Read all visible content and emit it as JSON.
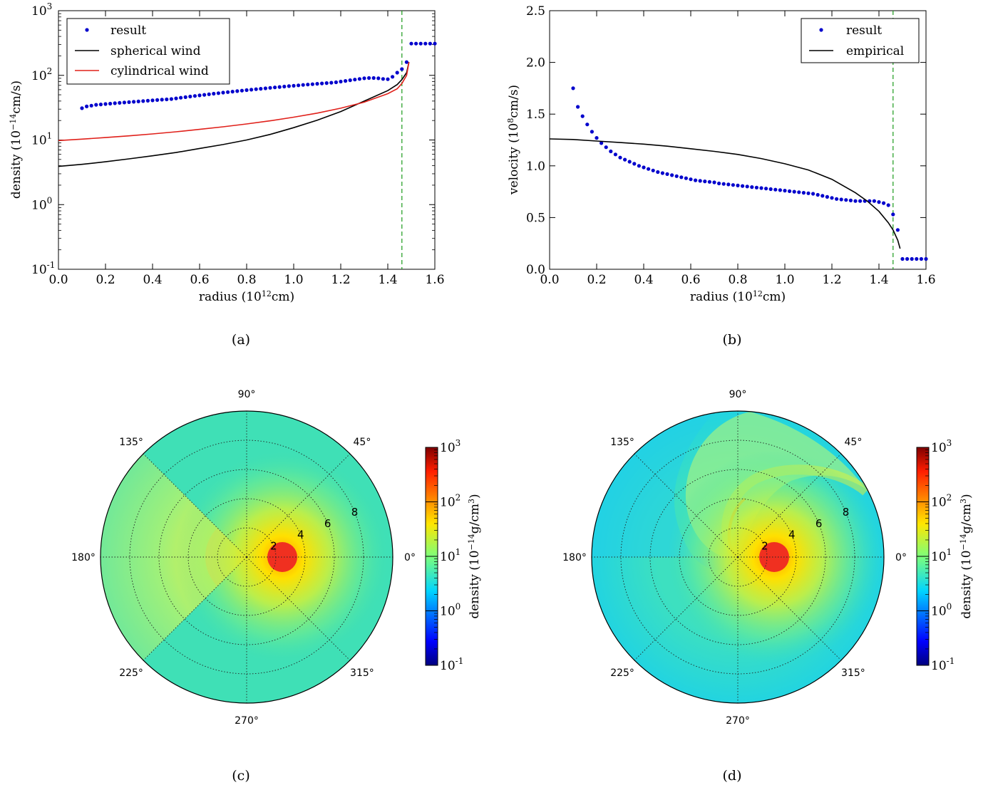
{
  "chart_data": [
    {
      "type": "scatter",
      "panel_label": "(a)",
      "xlabel_main": "radius",
      "xlabel_unit_pre": "(10",
      "xlabel_unit_exp": "12",
      "xlabel_unit_post": "cm)",
      "ylabel_main": "density",
      "ylabel_unit_pre": "(10",
      "ylabel_unit_exp": "−14",
      "ylabel_unit_post": "cm/s)",
      "xlim": [
        0,
        1.6
      ],
      "ylim": [
        0.1,
        1000
      ],
      "yscale": "log",
      "x_ticks": [
        "0.0",
        "0.2",
        "0.4",
        "0.6",
        "0.8",
        "1.0",
        "1.2",
        "1.4",
        "1.6"
      ],
      "y_ticks": [
        {
          "base": "10",
          "exp": "-1",
          "value": 0.1
        },
        {
          "base": "10",
          "exp": "0",
          "value": 1
        },
        {
          "base": "10",
          "exp": "1",
          "value": 10
        },
        {
          "base": "10",
          "exp": "2",
          "value": 100
        },
        {
          "base": "10",
          "exp": "3",
          "value": 1000
        }
      ],
      "vline": 1.46,
      "legend": {
        "position": "top-left",
        "entries": [
          {
            "label": "result",
            "style": "dots",
            "color": "#0000cc"
          },
          {
            "label": "spherical wind",
            "style": "line",
            "color": "#000000"
          },
          {
            "label": "cylindrical wind",
            "style": "line",
            "color": "#e0201a"
          }
        ]
      },
      "series": [
        {
          "name": "result",
          "kind": "dots",
          "color": "#0000cc",
          "x": [
            0.1,
            0.12,
            0.14,
            0.16,
            0.18,
            0.2,
            0.22,
            0.24,
            0.26,
            0.28,
            0.3,
            0.32,
            0.34,
            0.36,
            0.38,
            0.4,
            0.42,
            0.44,
            0.46,
            0.48,
            0.5,
            0.52,
            0.54,
            0.56,
            0.58,
            0.6,
            0.62,
            0.64,
            0.66,
            0.68,
            0.7,
            0.72,
            0.74,
            0.76,
            0.78,
            0.8,
            0.82,
            0.84,
            0.86,
            0.88,
            0.9,
            0.92,
            0.94,
            0.96,
            0.98,
            1.0,
            1.02,
            1.04,
            1.06,
            1.08,
            1.1,
            1.12,
            1.14,
            1.16,
            1.18,
            1.2,
            1.22,
            1.24,
            1.26,
            1.28,
            1.3,
            1.32,
            1.34,
            1.36,
            1.38,
            1.4,
            1.42,
            1.44,
            1.46,
            1.48,
            1.5,
            1.52,
            1.54,
            1.56,
            1.58,
            1.6
          ],
          "y": [
            31,
            33,
            34,
            35,
            35.5,
            36,
            36.5,
            37,
            37.5,
            38,
            38.5,
            39,
            39.5,
            40,
            40.5,
            41,
            41.5,
            42,
            42.5,
            43,
            44,
            45,
            46,
            47,
            48,
            49,
            50,
            51,
            52,
            53,
            54,
            55,
            56,
            57,
            58,
            59,
            60,
            61,
            62,
            63,
            64,
            65,
            66,
            67,
            68,
            69,
            70,
            71,
            72,
            73,
            74,
            75,
            76,
            77,
            78,
            80,
            82,
            84,
            86,
            88,
            90,
            91,
            91,
            90,
            88,
            87,
            95,
            110,
            125,
            160,
            310,
            310,
            310,
            310,
            310,
            310
          ]
        },
        {
          "name": "spherical wind",
          "kind": "line",
          "color": "#000000",
          "x": [
            0.0,
            0.1,
            0.2,
            0.3,
            0.4,
            0.5,
            0.6,
            0.7,
            0.8,
            0.9,
            1.0,
            1.1,
            1.2,
            1.3,
            1.4,
            1.44,
            1.46,
            1.48,
            1.49
          ],
          "y": [
            3.9,
            4.2,
            4.6,
            5.1,
            5.7,
            6.4,
            7.4,
            8.5,
            10.0,
            12.2,
            15.5,
            20.2,
            27.5,
            40,
            58,
            72,
            86,
            110,
            160
          ]
        },
        {
          "name": "cylindrical wind",
          "kind": "line",
          "color": "#e0201a",
          "x": [
            0.0,
            0.1,
            0.2,
            0.3,
            0.4,
            0.5,
            0.6,
            0.7,
            0.8,
            0.9,
            1.0,
            1.1,
            1.2,
            1.3,
            1.4,
            1.44,
            1.46,
            1.48,
            1.49
          ],
          "y": [
            9.8,
            10.3,
            10.9,
            11.6,
            12.4,
            13.4,
            14.6,
            16.0,
            17.7,
            19.8,
            22.5,
            26.0,
            31,
            38.5,
            52,
            62,
            75,
            100,
            160
          ]
        }
      ]
    },
    {
      "type": "scatter",
      "panel_label": "(b)",
      "xlabel_main": "radius",
      "xlabel_unit_pre": "(10",
      "xlabel_unit_exp": "12",
      "xlabel_unit_post": "cm)",
      "ylabel_main": "velocity",
      "ylabel_unit_pre": "(10",
      "ylabel_unit_exp": "8",
      "ylabel_unit_post": "cm/s)",
      "xlim": [
        0,
        1.6
      ],
      "ylim": [
        0,
        2.5
      ],
      "yscale": "linear",
      "x_ticks": [
        "0.0",
        "0.2",
        "0.4",
        "0.6",
        "0.8",
        "1.0",
        "1.2",
        "1.4",
        "1.6"
      ],
      "y_ticks": [
        "0.0",
        "0.5",
        "1.0",
        "1.5",
        "2.0",
        "2.5"
      ],
      "vline": 1.46,
      "legend": {
        "position": "top-right",
        "entries": [
          {
            "label": "result",
            "style": "dots",
            "color": "#0000cc"
          },
          {
            "label": "empirical",
            "style": "line",
            "color": "#000000"
          }
        ]
      },
      "series": [
        {
          "name": "result",
          "kind": "dots",
          "color": "#0000cc",
          "x": [
            0.1,
            0.12,
            0.14,
            0.16,
            0.18,
            0.2,
            0.22,
            0.24,
            0.26,
            0.28,
            0.3,
            0.32,
            0.34,
            0.36,
            0.38,
            0.4,
            0.42,
            0.44,
            0.46,
            0.48,
            0.5,
            0.52,
            0.54,
            0.56,
            0.58,
            0.6,
            0.62,
            0.64,
            0.66,
            0.68,
            0.7,
            0.72,
            0.74,
            0.76,
            0.78,
            0.8,
            0.82,
            0.84,
            0.86,
            0.88,
            0.9,
            0.92,
            0.94,
            0.96,
            0.98,
            1.0,
            1.02,
            1.04,
            1.06,
            1.08,
            1.1,
            1.12,
            1.14,
            1.16,
            1.18,
            1.2,
            1.22,
            1.24,
            1.26,
            1.28,
            1.3,
            1.32,
            1.34,
            1.36,
            1.38,
            1.4,
            1.42,
            1.44,
            1.46,
            1.48,
            1.5,
            1.52,
            1.54,
            1.56,
            1.58,
            1.6
          ],
          "y": [
            1.75,
            1.57,
            1.48,
            1.4,
            1.33,
            1.27,
            1.22,
            1.18,
            1.14,
            1.11,
            1.08,
            1.06,
            1.04,
            1.02,
            1.0,
            0.985,
            0.97,
            0.955,
            0.94,
            0.93,
            0.92,
            0.91,
            0.9,
            0.89,
            0.88,
            0.87,
            0.86,
            0.855,
            0.85,
            0.845,
            0.84,
            0.83,
            0.825,
            0.82,
            0.815,
            0.81,
            0.805,
            0.8,
            0.795,
            0.79,
            0.785,
            0.78,
            0.775,
            0.77,
            0.765,
            0.76,
            0.755,
            0.75,
            0.745,
            0.74,
            0.735,
            0.73,
            0.72,
            0.71,
            0.7,
            0.69,
            0.68,
            0.675,
            0.67,
            0.665,
            0.66,
            0.66,
            0.66,
            0.66,
            0.66,
            0.65,
            0.64,
            0.62,
            0.53,
            0.38,
            0.1,
            0.1,
            0.1,
            0.1,
            0.1,
            0.1
          ]
        },
        {
          "name": "empirical",
          "kind": "line",
          "color": "#000000",
          "x": [
            0.0,
            0.1,
            0.2,
            0.3,
            0.4,
            0.5,
            0.6,
            0.7,
            0.8,
            0.9,
            1.0,
            1.1,
            1.2,
            1.3,
            1.35,
            1.4,
            1.44,
            1.46,
            1.48,
            1.49
          ],
          "y": [
            1.26,
            1.255,
            1.24,
            1.225,
            1.21,
            1.19,
            1.165,
            1.14,
            1.11,
            1.07,
            1.02,
            0.96,
            0.87,
            0.74,
            0.66,
            0.56,
            0.45,
            0.38,
            0.28,
            0.2
          ]
        }
      ]
    },
    {
      "type": "heatmap",
      "subtype": "polar",
      "panel_label": "(c)",
      "angle_labels": [
        "0°",
        "45°",
        "90°",
        "135°",
        "180°",
        "225°",
        "270°",
        "315°"
      ],
      "radial_ticks": [
        "2",
        "4",
        "6",
        "8"
      ],
      "radial_range": [
        0,
        10
      ],
      "colorbar": {
        "label_main": "density",
        "label_unit_pre": "(10",
        "label_unit_exp": "−14",
        "label_unit_post": "g/cm",
        "label_unit_exp2": "3",
        "label_unit_end": ")",
        "scale": "log",
        "range": [
          0.1,
          1000
        ],
        "ticks": [
          {
            "base": "10",
            "exp": "3",
            "value": 1000
          },
          {
            "base": "10",
            "exp": "2",
            "value": 100
          },
          {
            "base": "10",
            "exp": "1",
            "value": 10
          },
          {
            "base": "10",
            "exp": "0",
            "value": 1
          },
          {
            "base": "10",
            "exp": "-1",
            "value": 0.1
          }
        ]
      },
      "features": {
        "star_color": "#f03020",
        "background_color": "#3de0b8",
        "wedge_half_angle_deg": 45
      }
    },
    {
      "type": "heatmap",
      "subtype": "polar",
      "panel_label": "(d)",
      "angle_labels": [
        "0°",
        "45°",
        "90°",
        "135°",
        "180°",
        "225°",
        "270°",
        "315°"
      ],
      "radial_ticks": [
        "2",
        "4",
        "6",
        "8"
      ],
      "radial_range": [
        0,
        10
      ],
      "colorbar": {
        "label_main": "density",
        "label_unit_pre": "(10",
        "label_unit_exp": "−14",
        "label_unit_post": "g/cm",
        "label_unit_exp2": "3",
        "label_unit_end": ")",
        "scale": "log",
        "range": [
          0.1,
          1000
        ],
        "ticks": [
          {
            "base": "10",
            "exp": "3",
            "value": 1000
          },
          {
            "base": "10",
            "exp": "2",
            "value": 100
          },
          {
            "base": "10",
            "exp": "1",
            "value": 10
          },
          {
            "base": "10",
            "exp": "0",
            "value": 1
          },
          {
            "base": "10",
            "exp": "-1",
            "value": 0.1
          }
        ]
      },
      "features": {
        "star_color": "#f03020",
        "background_color": "#3de0b8",
        "outer_color": "#1fd4e8"
      }
    }
  ]
}
